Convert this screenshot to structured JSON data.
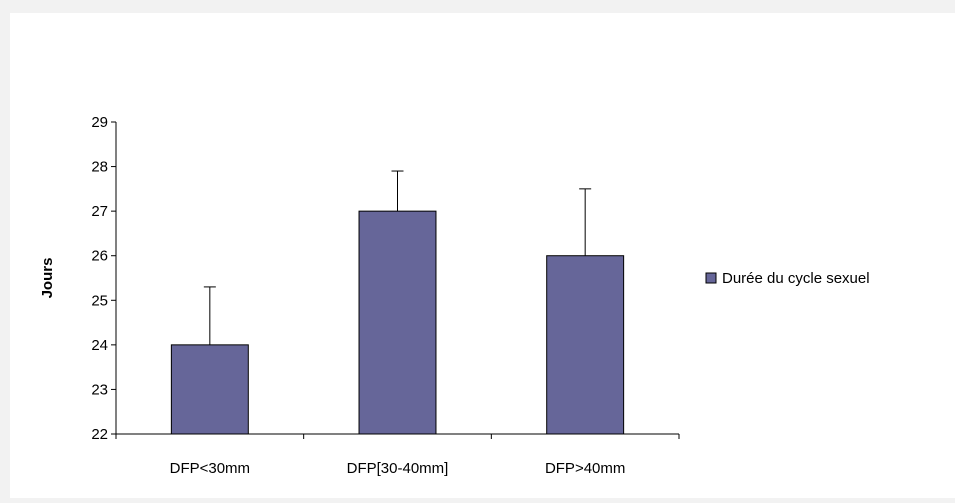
{
  "chart_data": {
    "type": "bar",
    "title": "",
    "xlabel": "",
    "ylabel": "Jours",
    "ylim": [
      22,
      29
    ],
    "yticks": [
      22,
      23,
      24,
      25,
      26,
      27,
      28,
      29
    ],
    "grid": false,
    "legend_position": "right",
    "categories": [
      "DFP<30mm",
      "DFP[30-40mm]",
      "DFP>40mm"
    ],
    "series": [
      {
        "name": "Durée du cycle sexuel",
        "values": [
          24,
          27,
          26
        ],
        "error_plus": [
          1.3,
          0.9,
          1.5
        ],
        "color": "#666699"
      }
    ]
  }
}
